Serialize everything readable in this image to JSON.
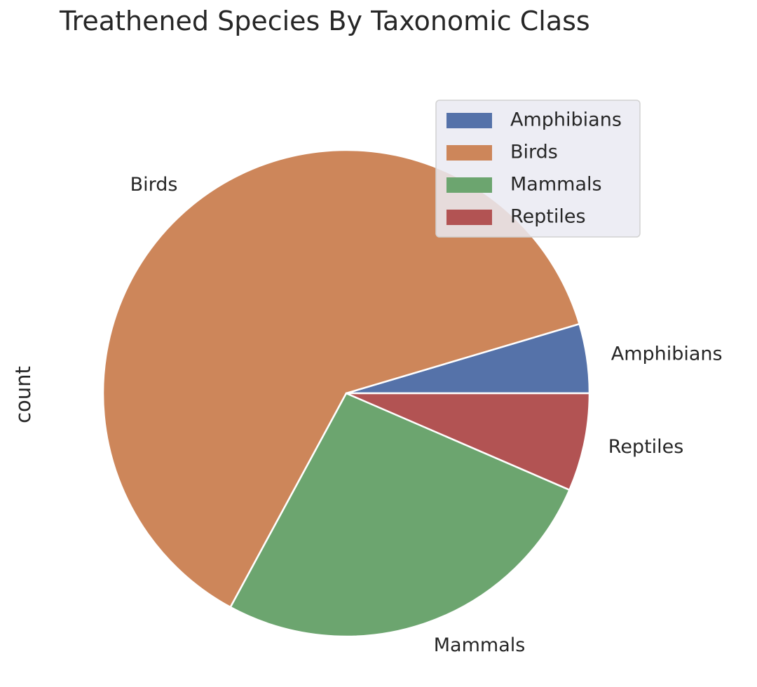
{
  "chart_data": {
    "type": "pie",
    "title": "Treathened Species By Taxonomic Class",
    "ylabel": "count",
    "categories": [
      "Amphibians",
      "Birds",
      "Mammals",
      "Reptiles"
    ],
    "values": [
      4.6,
      62.5,
      26.4,
      6.5
    ],
    "colors": [
      "#5572a9",
      "#cd865a",
      "#6ca56f",
      "#b25353"
    ],
    "start_angle_deg": 0,
    "direction": "counterclockwise",
    "legend": {
      "placement": "top-right",
      "entries": [
        "Amphibians",
        "Birds",
        "Mammals",
        "Reptiles"
      ]
    }
  }
}
